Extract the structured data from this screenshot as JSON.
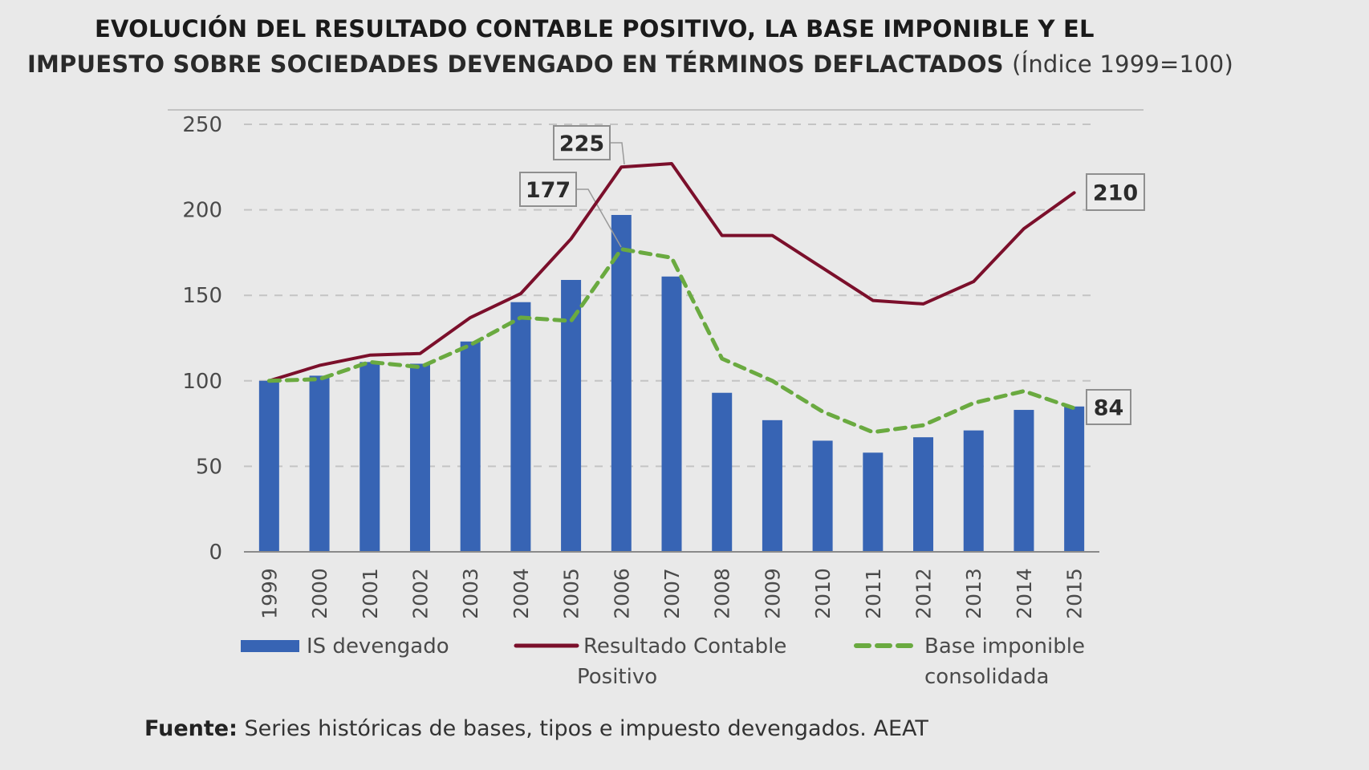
{
  "title": {
    "line1": "EVOLUCIÓN DEL RESULTADO CONTABLE POSITIVO, LA BASE IMPONIBLE Y EL",
    "line2": "IMPUESTO SOBRE SOCIEDADES DEVENGADO EN TÉRMINOS DEFLACTADOS",
    "line2_suffix": "(Índice 1999=100)"
  },
  "source": {
    "label": "Fuente:",
    "text": "Series históricas de bases, tipos e impuesto devengados. AEAT"
  },
  "colors": {
    "background": "#e9e9e9",
    "bar": "#3764b4",
    "line_red": "#7b0f2b",
    "line_green": "#6aaa40",
    "grid": "#c4c4c4",
    "axis": "#8a8a8a"
  },
  "chart_data": {
    "type": "bar",
    "title": "EVOLUCIÓN DEL RESULTADO CONTABLE POSITIVO, LA BASE IMPONIBLE Y EL IMPUESTO SOBRE SOCIEDADES DEVENGADO EN TÉRMINOS DEFLACTADOS (Índice 1999=100)",
    "xlabel": "",
    "ylabel": "",
    "ylim": [
      0,
      250
    ],
    "yticks": [
      0,
      50,
      100,
      150,
      200,
      250
    ],
    "grid": true,
    "legend_position": "bottom",
    "categories": [
      "1999",
      "2000",
      "2001",
      "2002",
      "2003",
      "2004",
      "2005",
      "2006",
      "2007",
      "2008",
      "2009",
      "2010",
      "2011",
      "2012",
      "2013",
      "2014",
      "2015"
    ],
    "series": [
      {
        "name": "IS devengado",
        "type": "bar",
        "legend_lines": [
          "IS devengado"
        ],
        "values": [
          100,
          103,
          111,
          110,
          123,
          146,
          159,
          197,
          161,
          93,
          77,
          65,
          58,
          67,
          71,
          83,
          85
        ]
      },
      {
        "name": "Resultado Contable Positivo",
        "type": "line",
        "style": "solid",
        "legend_lines": [
          "Resultado Contable",
          "Positivo"
        ],
        "values": [
          100,
          109,
          115,
          116,
          137,
          151,
          183,
          225,
          227,
          185,
          185,
          166,
          147,
          145,
          158,
          189,
          210
        ]
      },
      {
        "name": "Base imponible consolidada",
        "type": "line",
        "style": "dashed",
        "legend_lines": [
          "Base imponible",
          "consolidada"
        ],
        "values": [
          100,
          101,
          111,
          108,
          121,
          137,
          135,
          177,
          172,
          113,
          100,
          82,
          70,
          74,
          87,
          94,
          84
        ]
      }
    ],
    "annotations": [
      {
        "text": "225",
        "series": "Resultado Contable Positivo",
        "category": "2006"
      },
      {
        "text": "177",
        "series": "Base imponible consolidada",
        "category": "2006"
      },
      {
        "text": "210",
        "series": "Resultado Contable Positivo",
        "category": "2015"
      },
      {
        "text": "84",
        "series": "Base imponible consolidada",
        "category": "2015"
      }
    ]
  }
}
